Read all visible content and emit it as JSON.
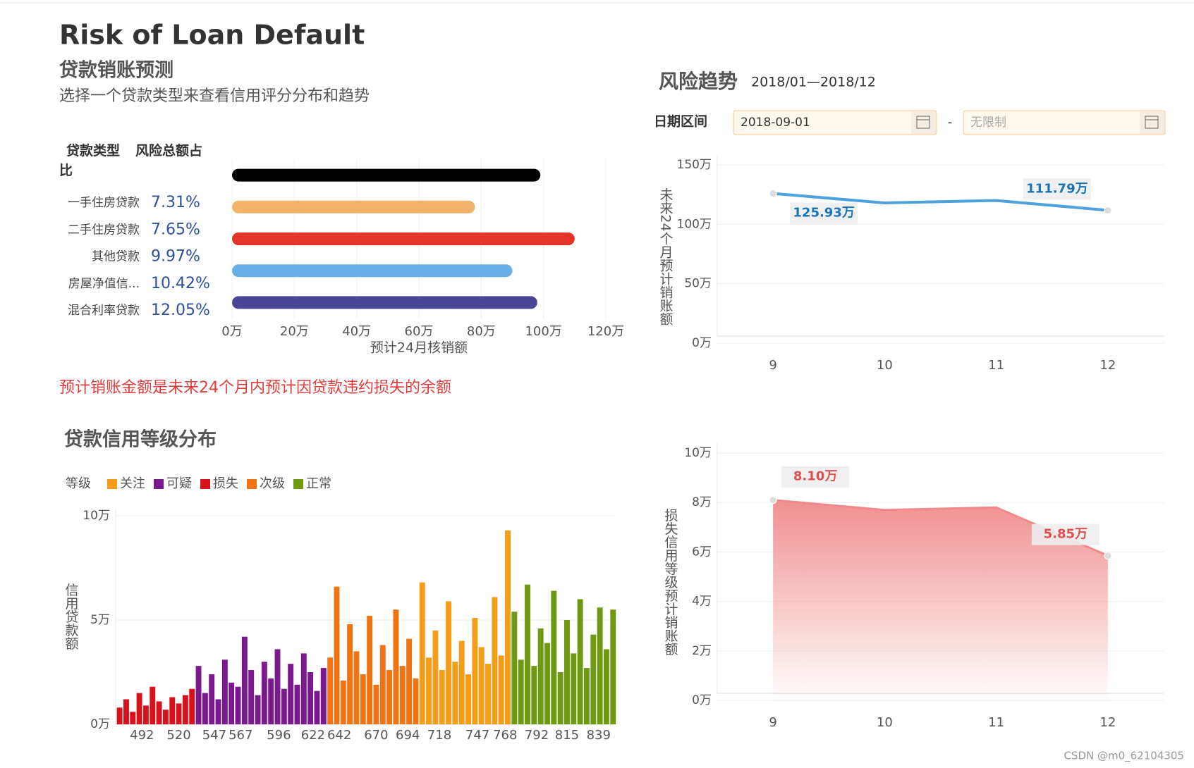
{
  "title": "Risk of Loan Default",
  "section_title": "贷款销账预测",
  "section_subtitle": "选择一个贷款类型来查看信用评分分布和趋势",
  "loan_table": {
    "headers": [
      "贷款类型",
      "风险总额占比"
    ],
    "rows": [
      [
        "一手住房贷款",
        "7.31%"
      ],
      [
        "二手住房贷款",
        "7.65%"
      ],
      [
        "其他贷款",
        "9.97%"
      ],
      [
        "房屋净值信...",
        "10.42%"
      ],
      [
        "混合利率贷款",
        "12.05%"
      ]
    ]
  },
  "note": "预计销账金额是未来24个月内预计因贷款违约损失的余额",
  "date_filter": {
    "label": "日期区间",
    "start": "2018-09-01",
    "separator": "-",
    "end_placeholder": "无限制"
  },
  "watermark": "CSDN @m0_62104305",
  "chart_data": [
    {
      "type": "hbar",
      "values": [
        99,
        78,
        110,
        90,
        98
      ],
      "colors": [
        "#000000",
        "#f2b46a",
        "#e3342a",
        "#6aaee6",
        "#4b4596"
      ],
      "xlim": [
        0,
        120
      ],
      "xticks": [
        {
          "value": 0,
          "label": "0万"
        },
        {
          "value": 20,
          "label": "20万"
        },
        {
          "value": 40,
          "label": "40万"
        },
        {
          "value": 60,
          "label": "60万"
        },
        {
          "value": 80,
          "label": "80万"
        },
        {
          "value": 100,
          "label": "100万"
        },
        {
          "value": 120,
          "label": "120万"
        }
      ],
      "xlabel": "预计24月核销额",
      "grid": true
    },
    {
      "type": "bar",
      "title": "贷款信用等级分布",
      "legend_title": "等级",
      "ylabel": "信用贷款额",
      "xlim": [
        472,
        852
      ],
      "xticks": [
        492,
        520,
        547,
        567,
        596,
        622,
        642,
        670,
        694,
        718,
        747,
        768,
        792,
        815,
        839
      ],
      "ylim": [
        0,
        10
      ],
      "yticks": [
        {
          "value": 0,
          "label": "0万"
        },
        {
          "value": 5,
          "label": "5万"
        },
        {
          "value": 10,
          "label": "10万"
        }
      ],
      "grid": true,
      "series": [
        {
          "name": "关注",
          "color": "#f59c18",
          "x": [
            705,
            710,
            715,
            720,
            725,
            730,
            735,
            740,
            745,
            750,
            755,
            760,
            765,
            770
          ],
          "values": [
            6.8,
            3.2,
            4.5,
            2.6,
            5.9,
            3.0,
            4.0,
            2.4,
            5.1,
            3.7,
            2.9,
            6.1,
            3.3,
            9.3
          ]
        },
        {
          "name": "可疑",
          "color": "#7b1a8f",
          "x": [
            535,
            540,
            545,
            550,
            555,
            560,
            565,
            570,
            575,
            580,
            585,
            590,
            595,
            600,
            605,
            610,
            615,
            620,
            625,
            630
          ],
          "values": [
            2.8,
            1.5,
            2.4,
            1.2,
            3.1,
            2.0,
            1.8,
            4.2,
            2.6,
            1.4,
            3.0,
            2.2,
            3.6,
            1.7,
            2.9,
            1.9,
            3.4,
            2.5,
            1.6,
            2.7
          ]
        },
        {
          "name": "损失",
          "color": "#d7121d",
          "x": [
            475,
            480,
            485,
            490,
            495,
            500,
            505,
            510,
            515,
            520,
            525,
            530
          ],
          "values": [
            0.8,
            1.2,
            0.6,
            1.5,
            0.9,
            1.8,
            1.1,
            0.7,
            1.3,
            1.0,
            1.4,
            1.7
          ]
        },
        {
          "name": "次级",
          "color": "#f07414",
          "x": [
            635,
            640,
            645,
            650,
            655,
            660,
            665,
            670,
            675,
            680,
            685,
            690,
            695,
            700
          ],
          "values": [
            3.2,
            6.6,
            2.1,
            4.8,
            3.5,
            2.4,
            5.2,
            1.9,
            3.8,
            2.6,
            5.5,
            2.8,
            4.1,
            2.2
          ]
        },
        {
          "name": "正常",
          "color": "#6e9a11",
          "x": [
            775,
            780,
            785,
            790,
            795,
            800,
            805,
            810,
            815,
            820,
            825,
            830,
            835,
            840,
            845,
            850
          ],
          "values": [
            5.4,
            3.1,
            6.7,
            2.8,
            4.6,
            3.9,
            6.4,
            2.5,
            5.0,
            3.4,
            6.0,
            2.7,
            4.3,
            5.6,
            3.6,
            5.5
          ]
        }
      ]
    },
    {
      "type": "line",
      "title": "风险趋势",
      "subtitle": "2018/01—2018/12",
      "ylabel": "未来24个月预计销账额",
      "categories": [
        "9",
        "10",
        "11",
        "12"
      ],
      "values": [
        125.93,
        118,
        120,
        111.79
      ],
      "value_labels": [
        "125.93万",
        null,
        null,
        "111.79万"
      ],
      "color": "#4ea1dc",
      "ylim": [
        0,
        150
      ],
      "yticks": [
        {
          "value": 0,
          "label": "0万"
        },
        {
          "value": 50,
          "label": "50万"
        },
        {
          "value": 100,
          "label": "100万"
        },
        {
          "value": 150,
          "label": "150万"
        }
      ],
      "grid": true
    },
    {
      "type": "area",
      "ylabel": "损失信用等级预计销账额",
      "categories": [
        "9",
        "10",
        "11",
        "12"
      ],
      "values": [
        8.1,
        7.7,
        7.8,
        5.85
      ],
      "value_labels": [
        "8.10万",
        null,
        null,
        "5.85万"
      ],
      "color": "#f08a8a",
      "ylim": [
        0,
        10
      ],
      "yticks": [
        {
          "value": 0,
          "label": "0万"
        },
        {
          "value": 2,
          "label": "2万"
        },
        {
          "value": 4,
          "label": "4万"
        },
        {
          "value": 6,
          "label": "6万"
        },
        {
          "value": 8,
          "label": "8万"
        },
        {
          "value": 10,
          "label": "10万"
        }
      ],
      "grid": true
    }
  ]
}
